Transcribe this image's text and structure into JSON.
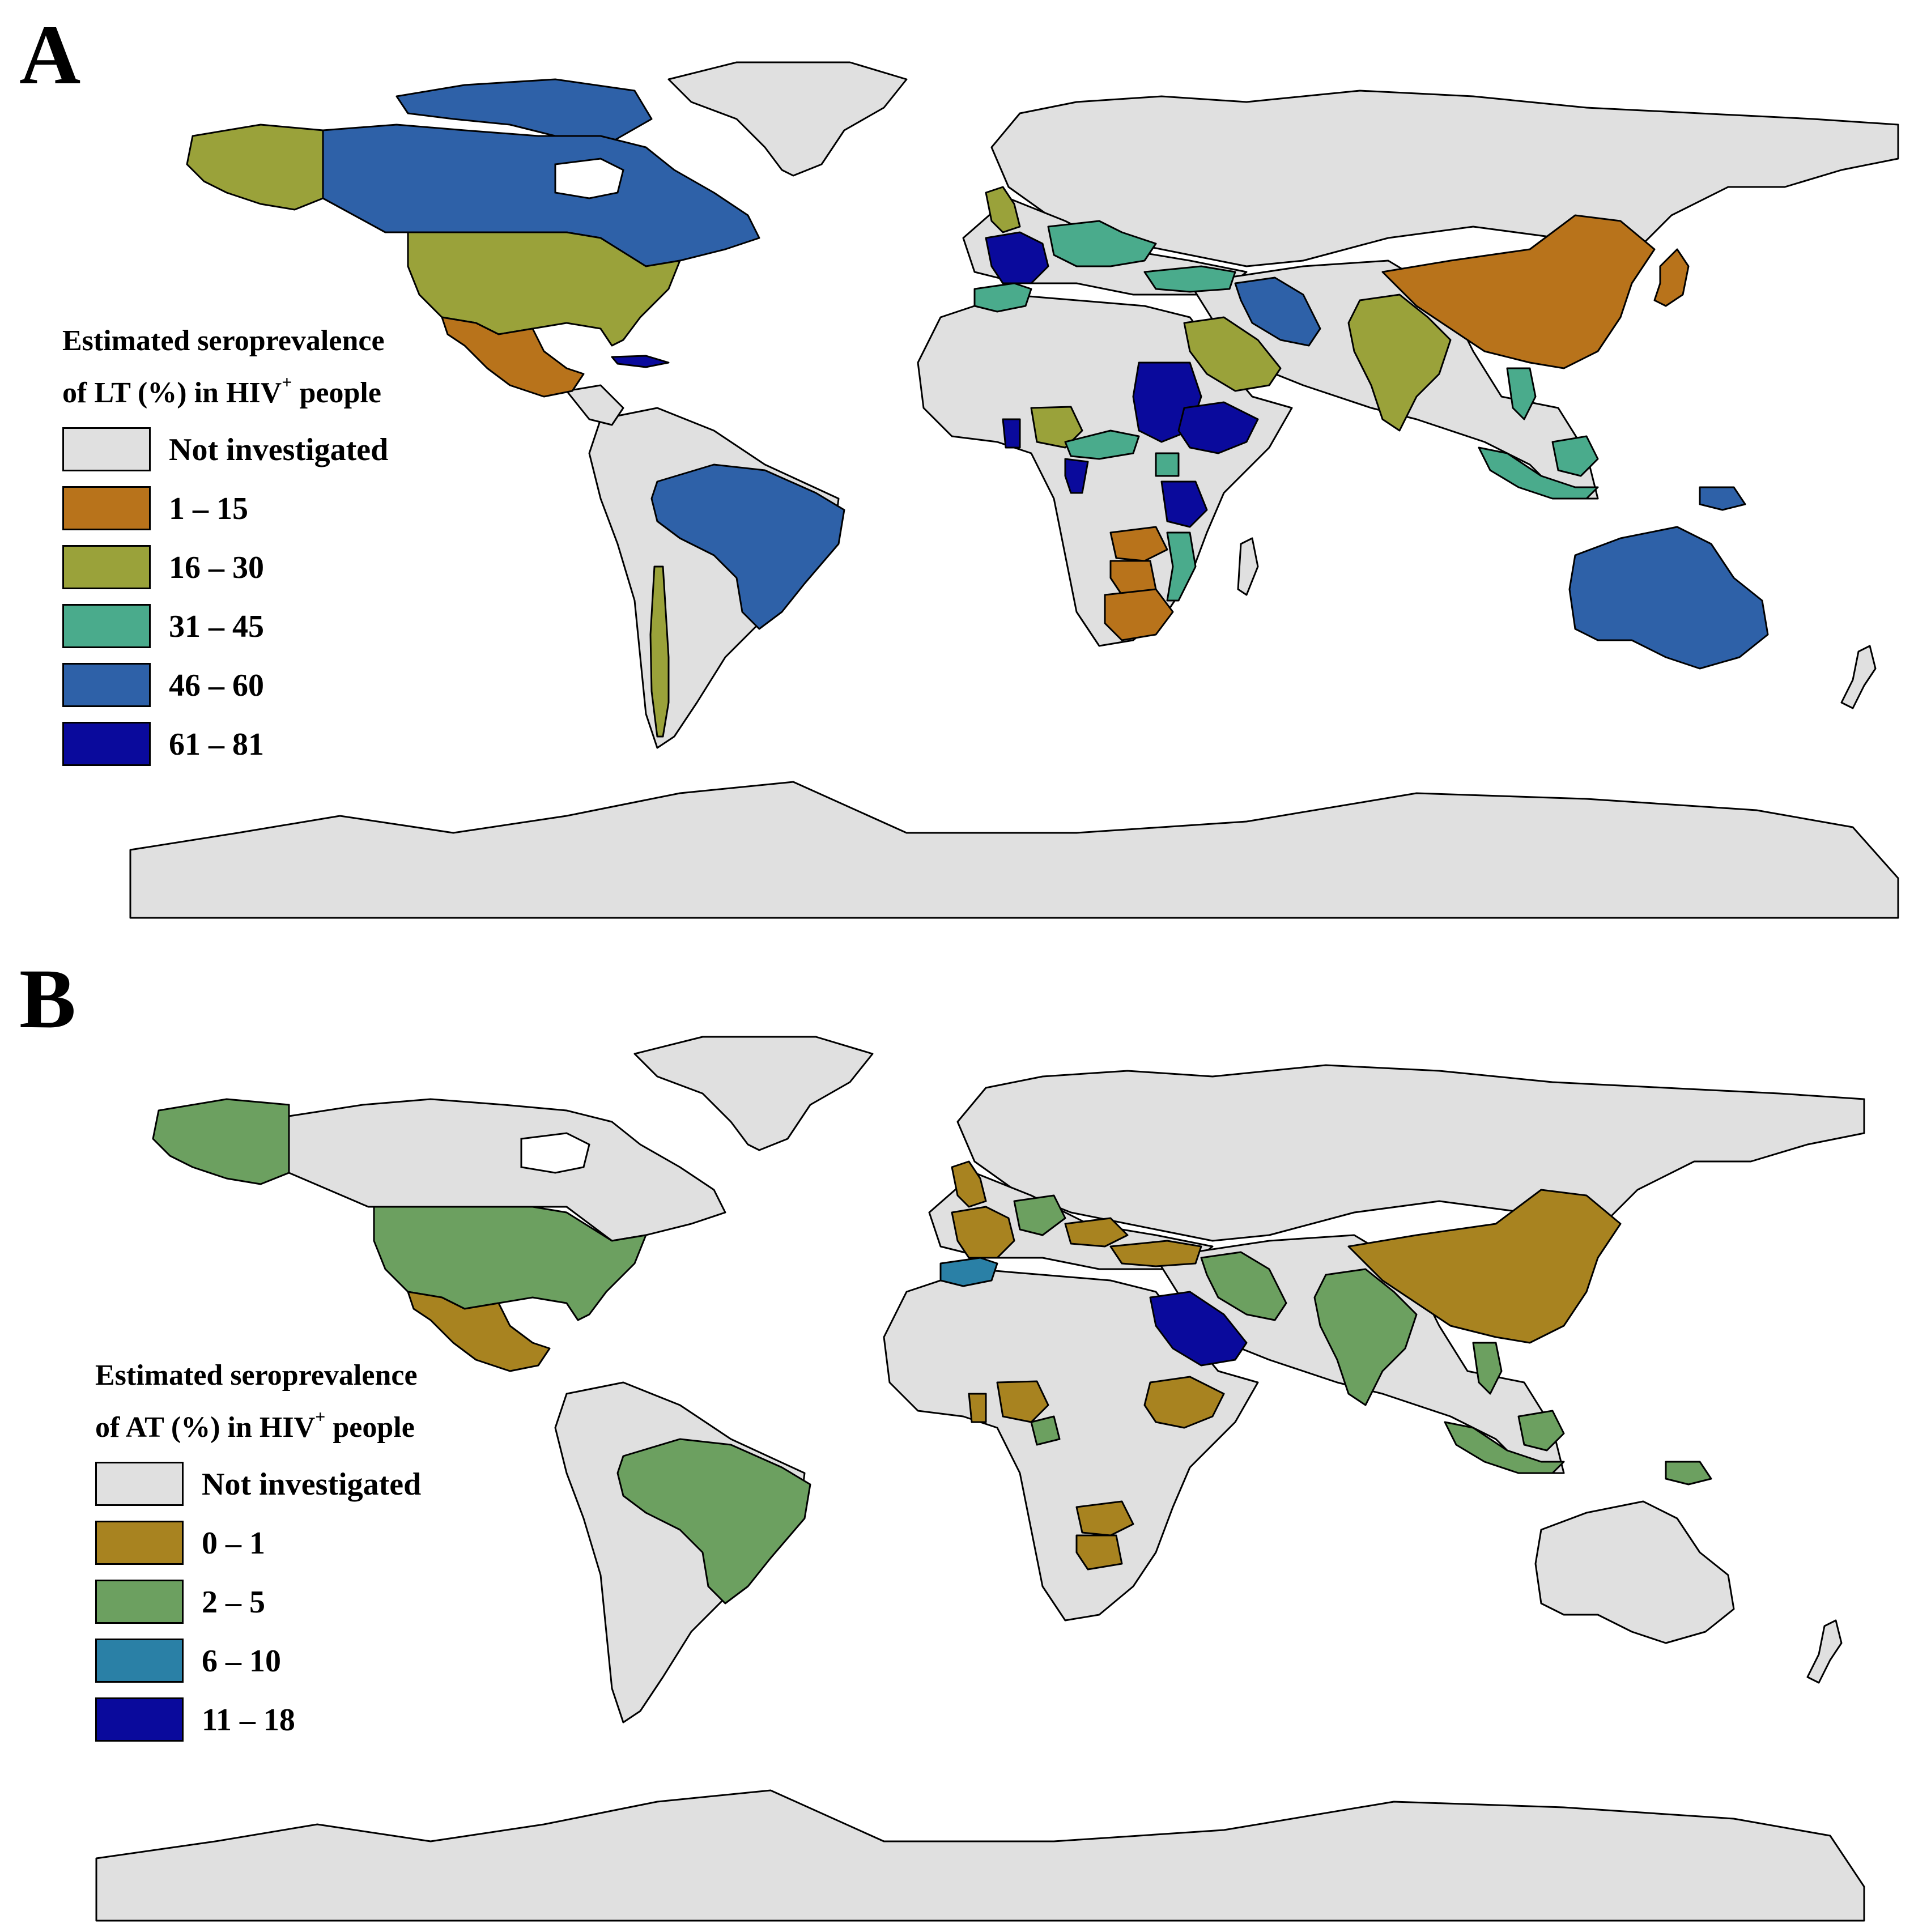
{
  "panel_a": {
    "letter": "A",
    "legend_title_line1": "Estimated seroprevalence",
    "legend_title_line2_pre": "of LT (%) in HIV",
    "legend_title_sup": "+",
    "legend_title_line2_post": " people",
    "legend": [
      {
        "label": "Not investigated",
        "color": "#e0e0e0"
      },
      {
        "label": "1 – 15",
        "color": "#b8731b"
      },
      {
        "label": "16 – 30",
        "color": "#9aa23a"
      },
      {
        "label": "31 – 45",
        "color": "#4aab8c"
      },
      {
        "label": "46 – 60",
        "color": "#2e61a8"
      },
      {
        "label": "61 – 81",
        "color": "#0a0a9c"
      }
    ],
    "countries": [
      {
        "name": "Alaska",
        "cls": 2
      },
      {
        "name": "Canada",
        "cls": 4
      },
      {
        "name": "United States",
        "cls": 2
      },
      {
        "name": "Mexico",
        "cls": 1
      },
      {
        "name": "Cuba",
        "cls": 5
      },
      {
        "name": "Brazil",
        "cls": 4
      },
      {
        "name": "Chile",
        "cls": 2
      },
      {
        "name": "United Kingdom",
        "cls": 2
      },
      {
        "name": "France",
        "cls": 5
      },
      {
        "name": "Spain",
        "cls": 3
      },
      {
        "name": "Central Europe",
        "cls": 3
      },
      {
        "name": "Turkey",
        "cls": 3
      },
      {
        "name": "Iran",
        "cls": 4
      },
      {
        "name": "Saudi Arabia",
        "cls": 2
      },
      {
        "name": "Sudan",
        "cls": 5
      },
      {
        "name": "Ethiopia",
        "cls": 5
      },
      {
        "name": "Nigeria",
        "cls": 2
      },
      {
        "name": "Ghana",
        "cls": 5
      },
      {
        "name": "Cameroon",
        "cls": 3
      },
      {
        "name": "DR Congo",
        "cls": 3
      },
      {
        "name": "Gabon",
        "cls": 5
      },
      {
        "name": "Tanzania",
        "cls": 5
      },
      {
        "name": "Zambia",
        "cls": 1
      },
      {
        "name": "Zimbabwe",
        "cls": 1
      },
      {
        "name": "South Africa",
        "cls": 1
      },
      {
        "name": "Mozambique",
        "cls": 3
      },
      {
        "name": "India",
        "cls": 2
      },
      {
        "name": "China",
        "cls": 1
      },
      {
        "name": "Japan",
        "cls": 1
      },
      {
        "name": "Thailand",
        "cls": 3
      },
      {
        "name": "Indonesia",
        "cls": 3
      },
      {
        "name": "Papua New Guinea",
        "cls": 4
      },
      {
        "name": "Australia",
        "cls": 4
      }
    ]
  },
  "panel_b": {
    "letter": "B",
    "legend_title_line1": "Estimated seroprevalence",
    "legend_title_line2_pre": "of AT (%) in HIV",
    "legend_title_sup": "+",
    "legend_title_line2_post": " people",
    "legend": [
      {
        "label": "Not investigated",
        "color": "#e0e0e0"
      },
      {
        "label": "0 – 1",
        "color": "#a88320"
      },
      {
        "label": "2 – 5",
        "color": "#6ca060"
      },
      {
        "label": "6 – 10",
        "color": "#2a80a6"
      },
      {
        "label": "11 – 18",
        "color": "#0a0a9c"
      }
    ],
    "countries": [
      {
        "name": "Alaska",
        "cls": 2
      },
      {
        "name": "United States",
        "cls": 2
      },
      {
        "name": "Mexico",
        "cls": 1
      },
      {
        "name": "Brazil",
        "cls": 2
      },
      {
        "name": "United Kingdom",
        "cls": 1
      },
      {
        "name": "France",
        "cls": 1
      },
      {
        "name": "Spain",
        "cls": 3
      },
      {
        "name": "Central Europe",
        "cls": 2
      },
      {
        "name": "Balkans",
        "cls": 1
      },
      {
        "name": "Turkey",
        "cls": 1
      },
      {
        "name": "Iran",
        "cls": 2
      },
      {
        "name": "Saudi Arabia",
        "cls": 4
      },
      {
        "name": "Ethiopia",
        "cls": 1
      },
      {
        "name": "Nigeria",
        "cls": 1
      },
      {
        "name": "Ghana",
        "cls": 1
      },
      {
        "name": "Cameroon",
        "cls": 2
      },
      {
        "name": "Zambia",
        "cls": 1
      },
      {
        "name": "Zimbabwe",
        "cls": 1
      },
      {
        "name": "India",
        "cls": 2
      },
      {
        "name": "China",
        "cls": 1
      },
      {
        "name": "Thailand",
        "cls": 2
      },
      {
        "name": "Indonesia",
        "cls": 2
      },
      {
        "name": "Papua New Guinea",
        "cls": 2
      }
    ]
  }
}
